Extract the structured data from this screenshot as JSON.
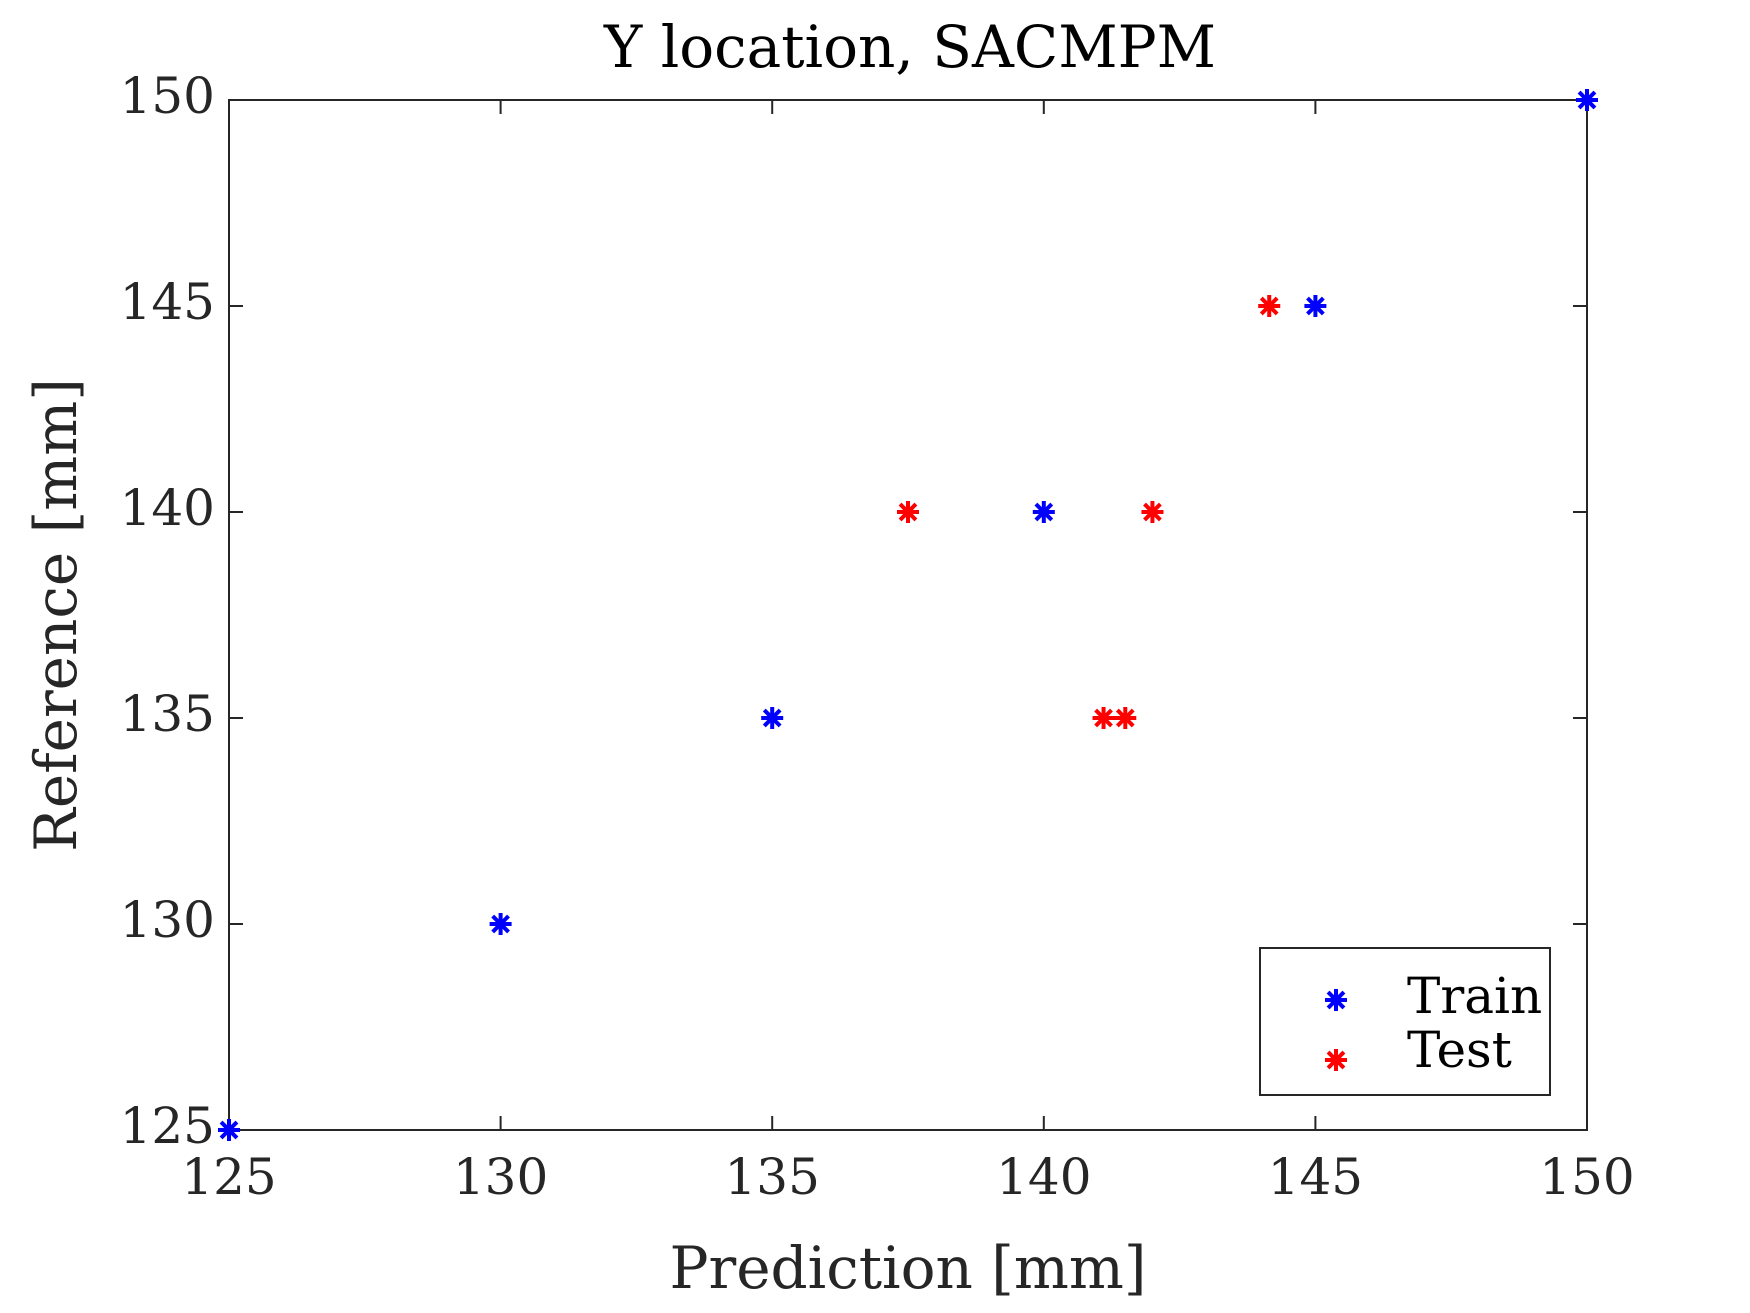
{
  "chart_data": {
    "type": "scatter",
    "title": "Y location, SACMPM",
    "xlabel": "Prediction [mm]",
    "ylabel": "Reference [mm]",
    "xlim": [
      125,
      150
    ],
    "ylim": [
      125,
      150
    ],
    "xticks": [
      "125",
      "130",
      "135",
      "140",
      "145",
      "150"
    ],
    "yticks": [
      "125",
      "130",
      "135",
      "140",
      "145",
      "150"
    ],
    "grid": false,
    "legend_position": "bottom-right",
    "marker": "asterisk",
    "series": [
      {
        "name": "Train",
        "color": "#0000ff",
        "points": [
          {
            "x": 125,
            "y": 125
          },
          {
            "x": 130,
            "y": 130
          },
          {
            "x": 135,
            "y": 135
          },
          {
            "x": 140,
            "y": 140
          },
          {
            "x": 145,
            "y": 145
          },
          {
            "x": 150,
            "y": 150
          }
        ]
      },
      {
        "name": "Test",
        "color": "#ff0000",
        "points": [
          {
            "x": 137.5,
            "y": 140
          },
          {
            "x": 142,
            "y": 140
          },
          {
            "x": 141.1,
            "y": 135
          },
          {
            "x": 141.5,
            "y": 135
          },
          {
            "x": 144.15,
            "y": 145
          }
        ]
      }
    ]
  }
}
